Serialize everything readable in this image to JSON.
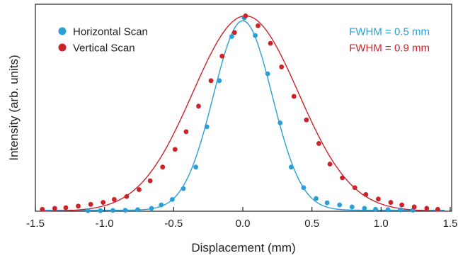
{
  "chart_data": {
    "type": "scatter",
    "xlabel": "Displacement (mm)",
    "ylabel": "Intensity (arb. units)",
    "xlim": [
      -1.5,
      1.5
    ],
    "ylim": [
      0,
      1.0
    ],
    "grid": false,
    "legend": "top-left",
    "x_ticks": [
      {
        "value": -1.5,
        "label": "-1.5"
      },
      {
        "value": -1.0,
        "label": "-1.0"
      },
      {
        "value": -0.5,
        "label": "-0.5"
      },
      {
        "value": 0.0,
        "label": "0.0"
      },
      {
        "value": 0.5,
        "label": "0.5"
      },
      {
        "value": 1.0,
        "label": "1.0"
      },
      {
        "value": 1.5,
        "label": "1.5"
      }
    ],
    "series": [
      {
        "name": "Horizontal Scan",
        "color": "#2a9fd6",
        "fwhm_mm": 0.5,
        "fit": {
          "center": 0.0,
          "amplitude": 0.965,
          "fwhm": 0.5,
          "offset": 0.005
        },
        "points": [
          {
            "x": -1.12,
            "y": 0.003
          },
          {
            "x": -1.03,
            "y": 0.003
          },
          {
            "x": -0.94,
            "y": 0.004
          },
          {
            "x": -0.85,
            "y": 0.005
          },
          {
            "x": -0.76,
            "y": 0.008
          },
          {
            "x": -0.66,
            "y": 0.015
          },
          {
            "x": -0.59,
            "y": 0.032
          },
          {
            "x": -0.51,
            "y": 0.06
          },
          {
            "x": -0.43,
            "y": 0.115
          },
          {
            "x": -0.34,
            "y": 0.225
          },
          {
            "x": -0.26,
            "y": 0.43
          },
          {
            "x": -0.17,
            "y": 0.665
          },
          {
            "x": -0.08,
            "y": 0.89
          },
          {
            "x": 0.01,
            "y": 0.985
          },
          {
            "x": 0.09,
            "y": 0.895
          },
          {
            "x": 0.18,
            "y": 0.7
          },
          {
            "x": 0.27,
            "y": 0.45
          },
          {
            "x": 0.35,
            "y": 0.225
          },
          {
            "x": 0.44,
            "y": 0.12
          },
          {
            "x": 0.53,
            "y": 0.065
          },
          {
            "x": 0.61,
            "y": 0.043
          },
          {
            "x": 0.7,
            "y": 0.032
          },
          {
            "x": 0.79,
            "y": 0.022
          },
          {
            "x": 0.88,
            "y": 0.015
          },
          {
            "x": 0.96,
            "y": 0.01
          },
          {
            "x": 1.05,
            "y": 0.008
          },
          {
            "x": 1.14,
            "y": 0.007
          },
          {
            "x": 1.23,
            "y": 0.005
          }
        ]
      },
      {
        "name": "Vertical Scan",
        "color": "#cc2229",
        "fwhm_mm": 0.9,
        "fit": {
          "center": 0.02,
          "amplitude": 0.995,
          "fwhm": 0.9,
          "offset": 0.0
        },
        "points": [
          {
            "x": -1.45,
            "y": 0.01
          },
          {
            "x": -1.36,
            "y": 0.015
          },
          {
            "x": -1.28,
            "y": 0.018
          },
          {
            "x": -1.19,
            "y": 0.026
          },
          {
            "x": -1.1,
            "y": 0.035
          },
          {
            "x": -1.01,
            "y": 0.045
          },
          {
            "x": -0.93,
            "y": 0.06
          },
          {
            "x": -0.84,
            "y": 0.075
          },
          {
            "x": -0.75,
            "y": 0.11
          },
          {
            "x": -0.67,
            "y": 0.155
          },
          {
            "x": -0.58,
            "y": 0.225
          },
          {
            "x": -0.49,
            "y": 0.315
          },
          {
            "x": -0.41,
            "y": 0.405
          },
          {
            "x": -0.32,
            "y": 0.535
          },
          {
            "x": -0.23,
            "y": 0.665
          },
          {
            "x": -0.15,
            "y": 0.79
          },
          {
            "x": -0.06,
            "y": 0.91
          },
          {
            "x": 0.02,
            "y": 0.995
          },
          {
            "x": 0.11,
            "y": 0.945
          },
          {
            "x": 0.2,
            "y": 0.855
          },
          {
            "x": 0.28,
            "y": 0.735
          },
          {
            "x": 0.37,
            "y": 0.585
          },
          {
            "x": 0.46,
            "y": 0.465
          },
          {
            "x": 0.55,
            "y": 0.345
          },
          {
            "x": 0.63,
            "y": 0.24
          },
          {
            "x": 0.72,
            "y": 0.17
          },
          {
            "x": 0.81,
            "y": 0.12
          },
          {
            "x": 0.89,
            "y": 0.085
          },
          {
            "x": 0.98,
            "y": 0.062
          },
          {
            "x": 1.07,
            "y": 0.045
          },
          {
            "x": 1.15,
            "y": 0.032
          },
          {
            "x": 1.24,
            "y": 0.022
          },
          {
            "x": 1.33,
            "y": 0.015
          },
          {
            "x": 1.41,
            "y": 0.01
          }
        ]
      }
    ],
    "annotations": [
      {
        "text": "FWHM = 0.5 mm",
        "color": "#2a9fd6"
      },
      {
        "text": "FWHM = 0.9 mm",
        "color": "#cc2229"
      }
    ]
  }
}
